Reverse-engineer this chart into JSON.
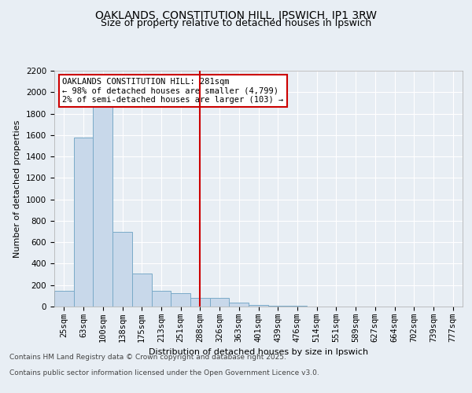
{
  "title": "OAKLANDS, CONSTITUTION HILL, IPSWICH, IP1 3RW",
  "subtitle": "Size of property relative to detached houses in Ipswich",
  "xlabel": "Distribution of detached houses by size in Ipswich",
  "ylabel": "Number of detached properties",
  "categories": [
    "25sqm",
    "63sqm",
    "100sqm",
    "138sqm",
    "175sqm",
    "213sqm",
    "251sqm",
    "288sqm",
    "326sqm",
    "363sqm",
    "401sqm",
    "439sqm",
    "476sqm",
    "514sqm",
    "551sqm",
    "589sqm",
    "627sqm",
    "664sqm",
    "702sqm",
    "739sqm",
    "777sqm"
  ],
  "values": [
    150,
    1580,
    1900,
    700,
    310,
    150,
    125,
    80,
    80,
    35,
    15,
    8,
    5,
    3,
    2,
    1,
    1,
    1,
    1,
    1,
    1
  ],
  "bar_color": "#c8d8ea",
  "bar_edge_color": "#7aaac8",
  "vline_x_index": 7,
  "vline_color": "#cc0000",
  "annotation_text": "OAKLANDS CONSTITUTION HILL: 281sqm\n← 98% of detached houses are smaller (4,799)\n2% of semi-detached houses are larger (103) →",
  "annotation_box_color": "#ffffff",
  "annotation_box_edge": "#cc0000",
  "ylim": [
    0,
    2200
  ],
  "yticks": [
    0,
    200,
    400,
    600,
    800,
    1000,
    1200,
    1400,
    1600,
    1800,
    2000,
    2200
  ],
  "background_color": "#e8eef4",
  "plot_bg_color": "#e8eef4",
  "footer_line1": "Contains HM Land Registry data © Crown copyright and database right 2025.",
  "footer_line2": "Contains public sector information licensed under the Open Government Licence v3.0.",
  "title_fontsize": 10,
  "subtitle_fontsize": 9,
  "axis_label_fontsize": 8,
  "tick_fontsize": 7.5,
  "footer_fontsize": 6.5
}
